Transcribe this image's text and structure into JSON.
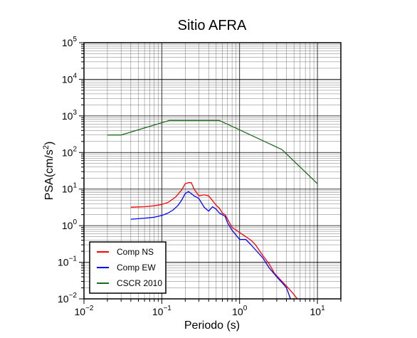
{
  "chart_data": {
    "type": "line",
    "title": "Sitio AFRA",
    "xlabel": "Periodo (s)",
    "ylabel": {
      "main": "PSA(cm/s",
      "sup": "2",
      "tail": ")"
    },
    "x_scale": "log",
    "y_scale": "log",
    "xlim": [
      0.01,
      20
    ],
    "ylim": [
      0.01,
      100000
    ],
    "grid": true,
    "legend_position": "bottom-left",
    "x_ticks": [
      {
        "value": 0.01,
        "base": "10",
        "exp": "−2"
      },
      {
        "value": 0.1,
        "base": "10",
        "exp": "−1"
      },
      {
        "value": 1,
        "base": "10",
        "exp": "0"
      },
      {
        "value": 10,
        "base": "10",
        "exp": "1"
      }
    ],
    "y_ticks": [
      {
        "value": 0.01,
        "base": "10",
        "exp": "−2"
      },
      {
        "value": 0.1,
        "base": "10",
        "exp": "−1"
      },
      {
        "value": 1,
        "base": "10",
        "exp": "0"
      },
      {
        "value": 10,
        "base": "10",
        "exp": "1"
      },
      {
        "value": 100,
        "base": "10",
        "exp": "2"
      },
      {
        "value": 1000,
        "base": "10",
        "exp": "3"
      },
      {
        "value": 10000,
        "base": "10",
        "exp": "4"
      },
      {
        "value": 100000,
        "base": "10",
        "exp": "5"
      }
    ],
    "series": [
      {
        "name": "Comp NS",
        "color": "#ff0000",
        "x": [
          0.04,
          0.06,
          0.08,
          0.1,
          0.12,
          0.15,
          0.18,
          0.2,
          0.22,
          0.24,
          0.26,
          0.3,
          0.35,
          0.4,
          0.45,
          0.5,
          0.55,
          0.6,
          0.65,
          0.7,
          0.8,
          1.0,
          1.2,
          1.4,
          1.6,
          2.0,
          2.4,
          2.8,
          3.5,
          4.2,
          5.0,
          5.5
        ],
        "y": [
          3.2,
          3.3,
          3.5,
          3.8,
          4.3,
          6.0,
          9.5,
          14.0,
          15.0,
          15.0,
          10.0,
          6.5,
          7.0,
          6.5,
          4.8,
          3.6,
          3.0,
          2.2,
          2.0,
          1.5,
          0.9,
          0.65,
          0.5,
          0.4,
          0.3,
          0.15,
          0.09,
          0.05,
          0.03,
          0.02,
          0.013,
          0.01
        ]
      },
      {
        "name": "Comp EW",
        "color": "#0000ff",
        "x": [
          0.04,
          0.06,
          0.08,
          0.1,
          0.12,
          0.14,
          0.16,
          0.18,
          0.2,
          0.22,
          0.24,
          0.26,
          0.28,
          0.3,
          0.35,
          0.4,
          0.45,
          0.5,
          0.55,
          0.6,
          0.65,
          0.7,
          0.8,
          1.0,
          1.2,
          1.4,
          1.6,
          2.0,
          2.4,
          3.0,
          3.5,
          4.0,
          4.5
        ],
        "y": [
          1.5,
          1.6,
          1.7,
          1.9,
          2.2,
          2.7,
          3.5,
          5.0,
          7.5,
          8.5,
          7.5,
          6.5,
          6.0,
          5.5,
          3.2,
          2.5,
          3.3,
          2.8,
          2.2,
          2.0,
          1.8,
          1.2,
          0.75,
          0.42,
          0.42,
          0.3,
          0.22,
          0.13,
          0.07,
          0.04,
          0.028,
          0.02,
          0.01
        ]
      },
      {
        "name": "CSCR 2010",
        "color": "#1e6b1e",
        "x": [
          0.02,
          0.03,
          0.125,
          0.55,
          3.5,
          10
        ],
        "y": [
          300,
          300,
          750,
          750,
          120,
          14
        ]
      }
    ]
  }
}
